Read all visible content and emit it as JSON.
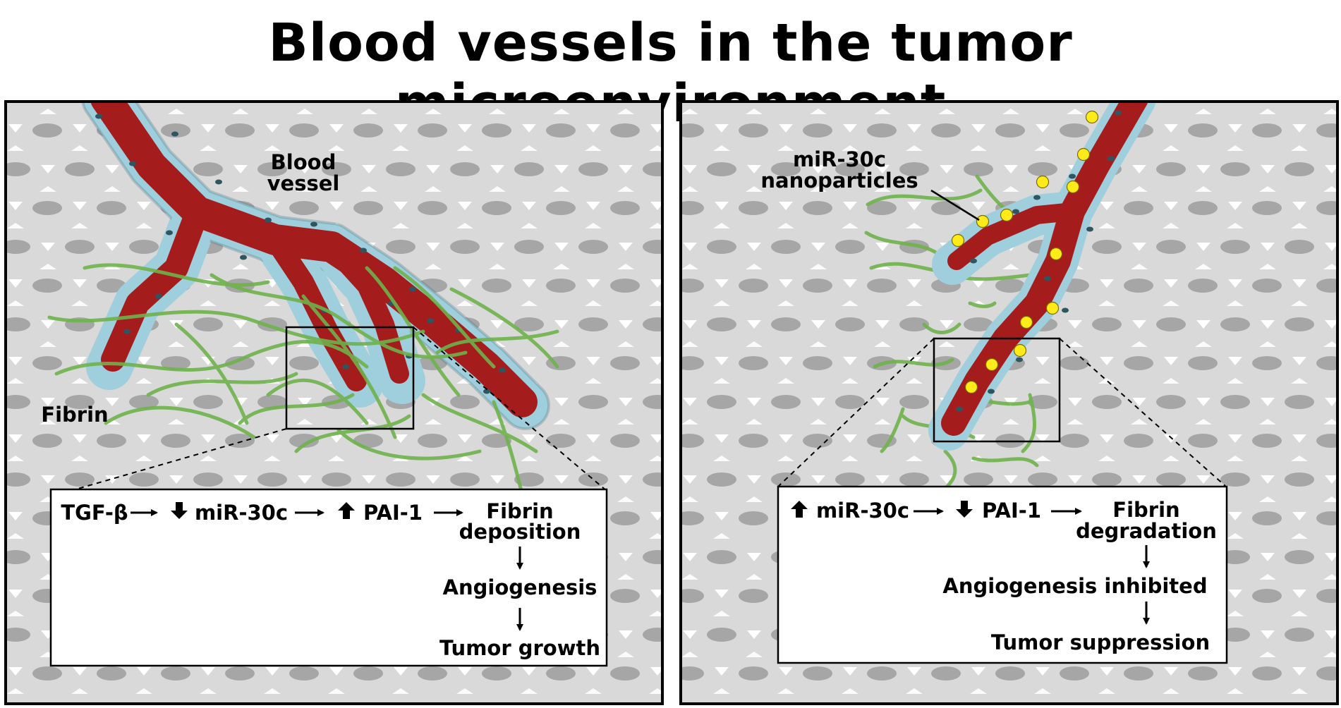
{
  "title": "Blood vessels in the tumor microenvironment",
  "colors": {
    "background_tissue": "#d9d9d9",
    "tissue_cells": "#a6a6a6",
    "vessel_lumen": "#a51c1c",
    "endothelium": "#9fcfdc",
    "fibrin": "#6fb24c",
    "nanoparticle": "#ffeb1a"
  },
  "left_panel": {
    "vessel_label_line1": "Blood",
    "vessel_label_line2": "vessel",
    "fibrin_label": "Fibrin",
    "pathway": {
      "step1": "TGF-β",
      "step2": "miR-30c",
      "step3": "PAI-1",
      "step4_line1": "Fibrin",
      "step4_line2": "deposition",
      "step5": "Angiogenesis",
      "step6": "Tumor growth"
    }
  },
  "right_panel": {
    "nanoparticle_label_line1": "miR-30c",
    "nanoparticle_label_line2": "nanoparticles",
    "pathway": {
      "step1": "miR-30c",
      "step2": "PAI-1",
      "step3_line1": "Fibrin",
      "step3_line2": "degradation",
      "step4": "Angiogenesis inhibited",
      "step5": "Tumor suppression"
    }
  }
}
